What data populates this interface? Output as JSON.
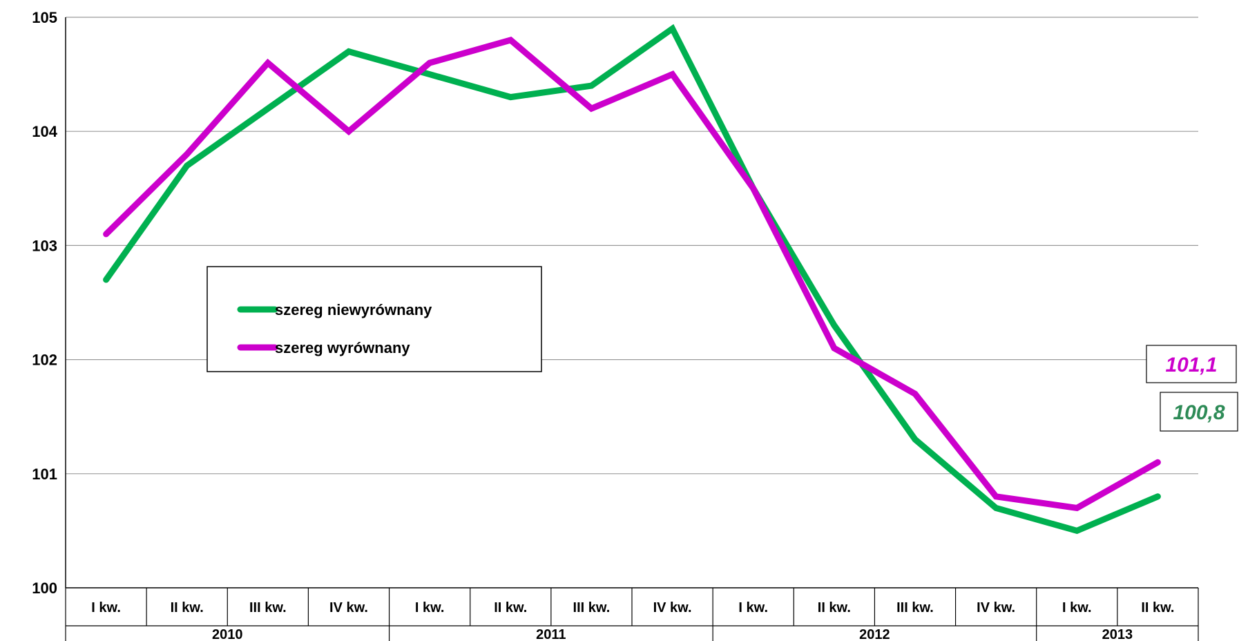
{
  "chart_data": {
    "type": "line",
    "title": "",
    "xlabel": "",
    "ylabel": "",
    "ylim": [
      100,
      105
    ],
    "yticks": [
      100,
      101,
      102,
      103,
      104,
      105
    ],
    "ytick_labels": [
      "100",
      "101",
      "102",
      "103",
      "104",
      "105"
    ],
    "grid": true,
    "legend_placement": "center-left",
    "categories": [
      "I kw.",
      "II kw.",
      "III kw.",
      "IV kw.",
      "I kw.",
      "II kw.",
      "III kw.",
      "IV kw.",
      "I kw.",
      "II kw.",
      "III kw.",
      "IV kw.",
      "I kw.",
      "II kw."
    ],
    "years": [
      {
        "label": "2010",
        "count": 4
      },
      {
        "label": "2011",
        "count": 4
      },
      {
        "label": "2012",
        "count": 4
      },
      {
        "label": "2013",
        "count": 2
      }
    ],
    "series": [
      {
        "name": "szereg niewyrównany",
        "color": "#00b050",
        "label_color": "#2e8b57",
        "values": [
          102.7,
          103.7,
          104.2,
          104.7,
          104.5,
          104.3,
          104.4,
          104.9,
          103.5,
          102.3,
          101.3,
          100.7,
          100.5,
          100.8
        ],
        "end_label": "100,8"
      },
      {
        "name": "szereg wyrównany",
        "color": "#cc00cc",
        "label_color": "#cc00cc",
        "values": [
          103.1,
          103.8,
          104.6,
          104.0,
          104.6,
          104.8,
          104.2,
          104.5,
          103.5,
          102.1,
          101.7,
          100.8,
          100.7,
          101.1
        ],
        "end_label": "101,1"
      }
    ]
  }
}
